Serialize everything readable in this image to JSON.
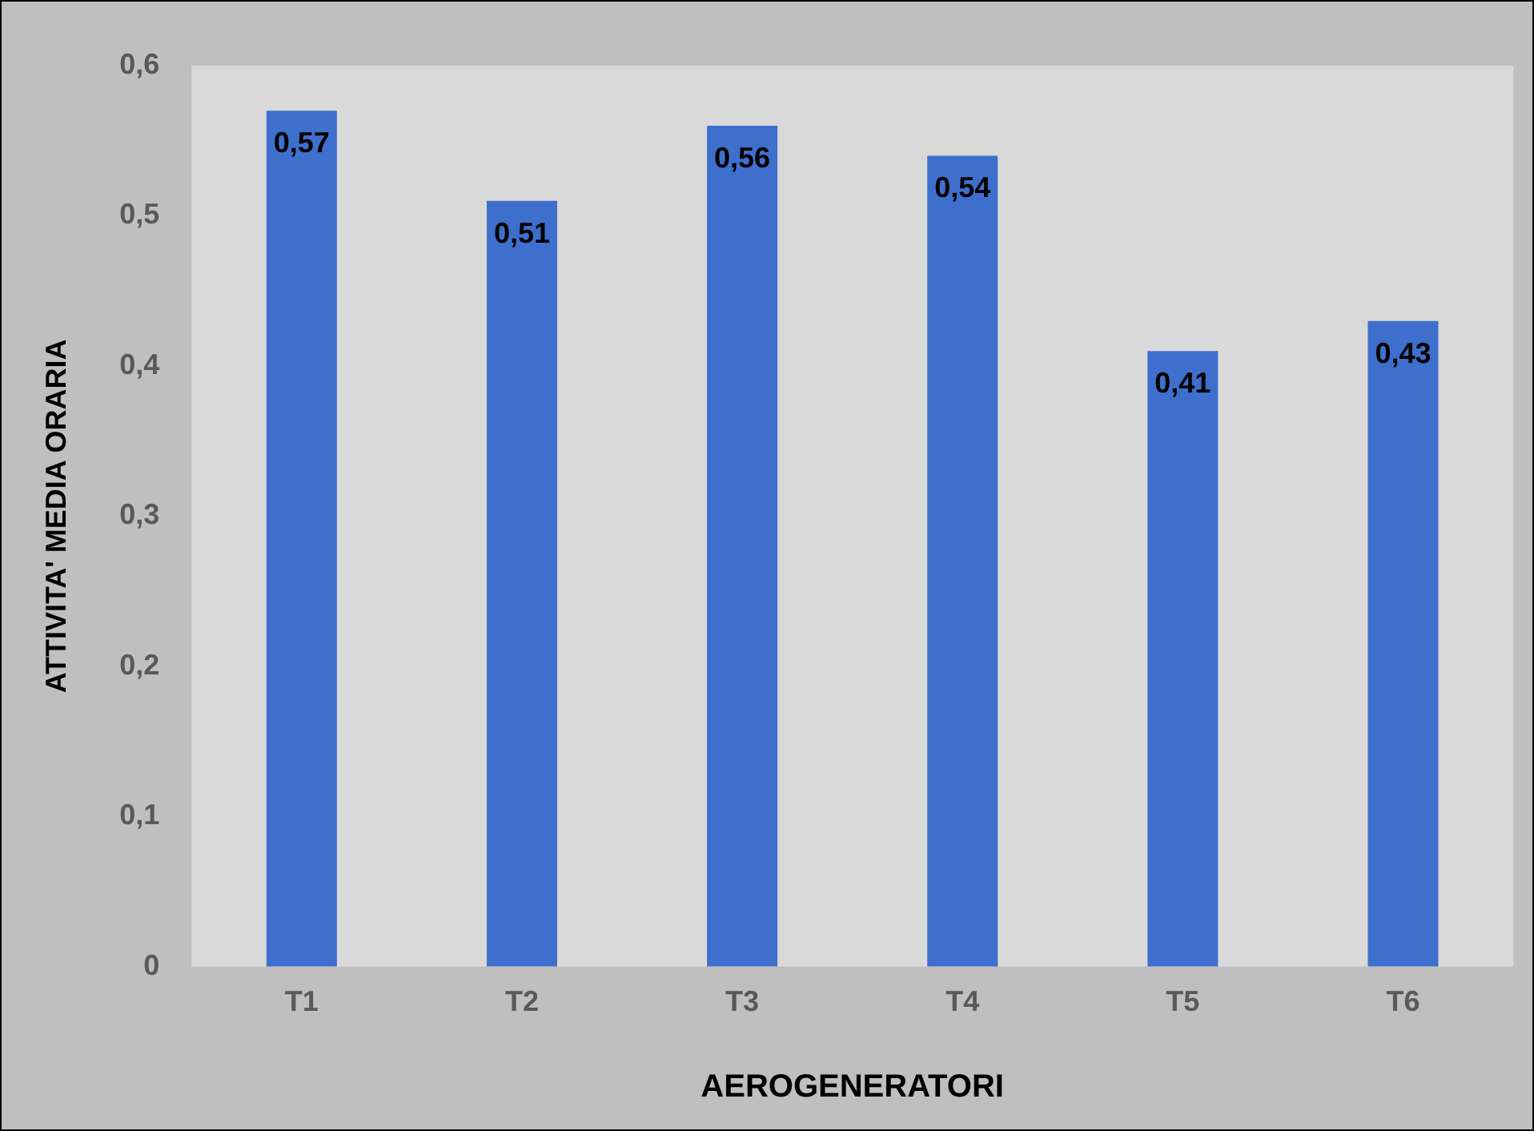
{
  "chart_data": {
    "type": "bar",
    "xlabel": "AEROGENERATORI",
    "ylabel": "ATTIVITA' MEDIA ORARIA",
    "categories": [
      "T1",
      "T2",
      "T3",
      "T4",
      "T5",
      "T6"
    ],
    "values": [
      0.57,
      0.51,
      0.56,
      0.54,
      0.41,
      0.43
    ],
    "value_labels": [
      "0,57",
      "0,51",
      "0,56",
      "0,54",
      "0,41",
      "0,43"
    ],
    "color": "#3f6fcc",
    "ylim": [
      0,
      0.6
    ],
    "yticks": [
      {
        "value": 0,
        "label": "0"
      },
      {
        "value": 0.1,
        "label": "0,1"
      },
      {
        "value": 0.2,
        "label": "0,2"
      },
      {
        "value": 0.3,
        "label": "0,3"
      },
      {
        "value": 0.4,
        "label": "0,4"
      },
      {
        "value": 0.5,
        "label": "0,5"
      },
      {
        "value": 0.6,
        "label": "0,6"
      }
    ]
  }
}
